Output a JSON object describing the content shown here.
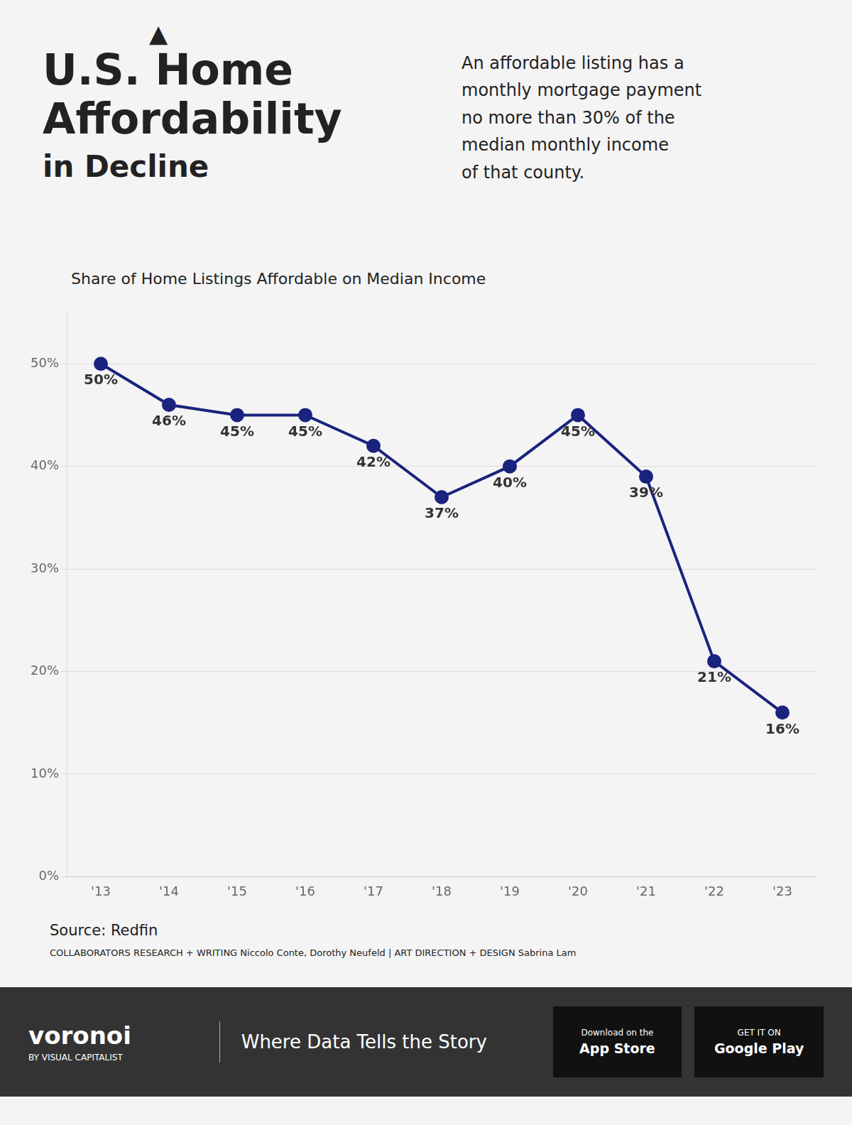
{
  "chart_data": {
    "type": "line",
    "title": [
      "U.S. Home",
      "Affordability",
      "in Decline"
    ],
    "subtitle": "Share of Home Listings Affordable on Median Income",
    "categories": [
      "'13",
      "'14",
      "'15",
      "'16",
      "'17",
      "'18",
      "'19",
      "'20",
      "'21",
      "'22",
      "'23"
    ],
    "values": [
      50,
      46,
      45,
      45,
      42,
      37,
      40,
      45,
      39,
      21,
      16
    ],
    "value_labels": [
      "50%",
      "46%",
      "45%",
      "45%",
      "42%",
      "37%",
      "40%",
      "45%",
      "39%",
      "21%",
      "16%"
    ],
    "data_labels": true,
    "color": "#1a237e",
    "marker": "circle",
    "ylim": [
      0,
      55
    ],
    "yticks": [
      {
        "value": 0,
        "label": "0%"
      },
      {
        "value": 10,
        "label": "10%"
      },
      {
        "value": 20,
        "label": "20%"
      },
      {
        "value": 30,
        "label": "30%"
      },
      {
        "value": 40,
        "label": "40%"
      },
      {
        "value": 50,
        "label": "50%"
      }
    ],
    "grid": true,
    "annotations": [
      "An affordable listing has a",
      "monthly mortgage payment",
      "no more than 30% of the",
      "median monthly income",
      "of that county.",
      "Source: Redfin",
      "COLLABORATORS   RESEARCH + WRITING Niccolo Conte, Dorothy Neufeld  |  ART DIRECTION + DESIGN Sabrina Lam",
      "voronoi",
      "BY VISUAL CAPITALIST",
      "Where Data Tells the Story",
      "Download on the",
      "App Store",
      "GET IT ON",
      "Google Play",
      "▲"
    ]
  }
}
